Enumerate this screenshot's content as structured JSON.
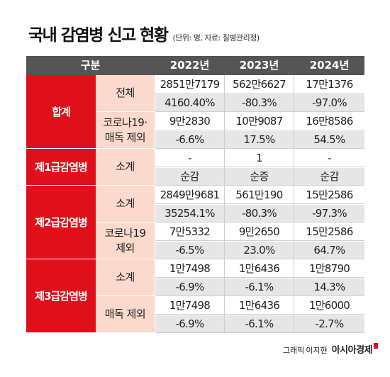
{
  "title": {
    "main": "국내 감염병 신고 현황",
    "unit": "(단위: 명, 자료: 질병관리청)"
  },
  "headers": [
    "구분",
    "2022년",
    "2023년",
    "2024년"
  ],
  "groups": [
    {
      "label": "합계",
      "subs": [
        {
          "label": [
            "전체"
          ],
          "rows": [
            [
              "2851만7179",
              "562만6627",
              "17만1376"
            ],
            [
              "4160.40%",
              "-80.3%",
              "-97.0%"
            ]
          ]
        },
        {
          "label": [
            "코로나19·",
            "매독 제외"
          ],
          "rows": [
            [
              "9만2830",
              "10만9087",
              "16만8586"
            ],
            [
              "-6.6%",
              "17.5%",
              "54.5%"
            ]
          ]
        }
      ]
    },
    {
      "label": "제1급감염병",
      "subs": [
        {
          "label": [
            "소계"
          ],
          "rows": [
            [
              "-",
              "1",
              "-"
            ],
            [
              "순감",
              "순증",
              "순감"
            ]
          ]
        }
      ]
    },
    {
      "label": "제2급감염병",
      "subs": [
        {
          "label": [
            "소계"
          ],
          "rows": [
            [
              "2849만9681",
              "561만190",
              "15만2586"
            ],
            [
              "35254.1%",
              "-80.3%",
              "-97.3%"
            ]
          ]
        },
        {
          "label": [
            "코로나19",
            "제외"
          ],
          "rows": [
            [
              "7만5332",
              "9만2650",
              "15만2586"
            ],
            [
              "-6.5%",
              "23.0%",
              "64.7%"
            ]
          ]
        }
      ]
    },
    {
      "label": "제3급감염병",
      "subs": [
        {
          "label": [
            "소계"
          ],
          "rows": [
            [
              "1만7498",
              "1만6436",
              "1만8790"
            ],
            [
              "-6.9%",
              "-6.1%",
              "14.3%"
            ]
          ]
        },
        {
          "label": [
            "매독 제외"
          ],
          "rows": [
            [
              "1만7498",
              "1만6436",
              "1만6000"
            ],
            [
              "-6.9%",
              "-6.1%",
              "-2.7%"
            ]
          ]
        }
      ]
    }
  ],
  "credit": {
    "label": "그래픽",
    "name": "이지현",
    "brand": "아시아경제"
  },
  "colors": {
    "red": "#e0101a",
    "pink": "#fbd9cc",
    "header_gray": "#555555",
    "row_gray": "#e6e6e6"
  }
}
